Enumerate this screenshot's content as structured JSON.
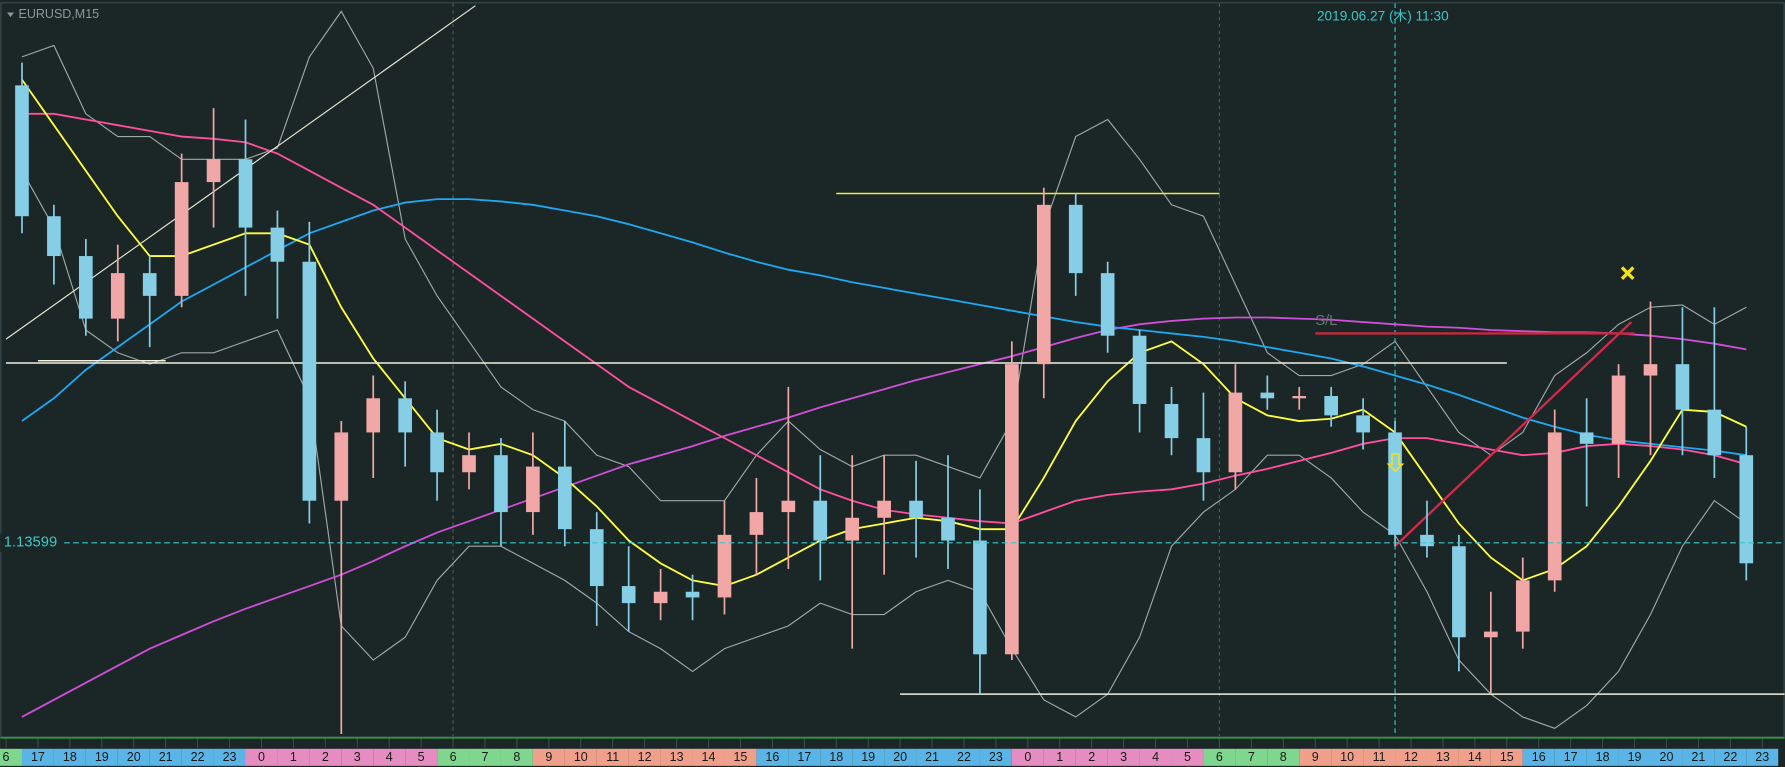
{
  "chart_data": {
    "type": "candlestick",
    "title": "EURUSD,M15",
    "cursor_time": "2019.06.27 (木) 11:30",
    "cursor_index": 43.5,
    "separators": [
      14,
      38
    ],
    "categories": [
      "6",
      "17",
      "18",
      "19",
      "20",
      "21",
      "22",
      "23",
      "0",
      "1",
      "2",
      "3",
      "4",
      "5",
      "6",
      "7",
      "8",
      "9",
      "10",
      "11",
      "12",
      "13",
      "14",
      "15",
      "16",
      "17",
      "18",
      "19",
      "20",
      "21",
      "22",
      "23",
      "0",
      "1",
      "2",
      "3",
      "4",
      "5",
      "6",
      "7",
      "8",
      "9",
      "10",
      "11",
      "12",
      "13",
      "14",
      "15",
      "16",
      "17",
      "18",
      "19",
      "20",
      "21",
      "22",
      "23"
    ],
    "category_colors": [
      "#7fd68f",
      "#5ab4e6",
      "#5ab4e6",
      "#5ab4e6",
      "#5ab4e6",
      "#5ab4e6",
      "#5ab4e6",
      "#5ab4e6",
      "#e58cc0",
      "#e58cc0",
      "#e58cc0",
      "#e58cc0",
      "#e58cc0",
      "#e58cc0",
      "#7fd68f",
      "#7fd68f",
      "#7fd68f",
      "#f0a08a",
      "#f0a08a",
      "#f0a08a",
      "#f0a08a",
      "#f0a08a",
      "#f0a08a",
      "#f0a08a",
      "#5ab4e6",
      "#5ab4e6",
      "#5ab4e6",
      "#5ab4e6",
      "#5ab4e6",
      "#5ab4e6",
      "#5ab4e6",
      "#5ab4e6",
      "#e58cc0",
      "#e58cc0",
      "#e58cc0",
      "#e58cc0",
      "#e58cc0",
      "#e58cc0",
      "#7fd68f",
      "#7fd68f",
      "#7fd68f",
      "#f0a08a",
      "#f0a08a",
      "#f0a08a",
      "#f0a08a",
      "#f0a08a",
      "#f0a08a",
      "#f0a08a",
      "#5ab4e6",
      "#5ab4e6",
      "#5ab4e6",
      "#5ab4e6",
      "#5ab4e6",
      "#5ab4e6",
      "#5ab4e6",
      "#5ab4e6"
    ],
    "open": [
      1.14001,
      1.13886,
      1.13851,
      1.13796,
      1.13836,
      1.13816,
      1.13916,
      1.13936,
      1.13876,
      1.13846,
      1.13636,
      1.13696,
      1.13726,
      1.13696,
      1.13661,
      1.13676,
      1.13626,
      1.13666,
      1.13611,
      1.13561,
      1.13546,
      1.13556,
      1.13551,
      1.13606,
      1.13626,
      1.13636,
      1.13601,
      1.13621,
      1.13636,
      1.13621,
      1.13601,
      1.13501,
      1.13756,
      1.13896,
      1.13836,
      1.13781,
      1.13721,
      1.13691,
      1.13661,
      1.13731,
      1.13726,
      1.13728,
      1.13711,
      1.13696,
      1.13606,
      1.13596,
      1.13516,
      1.13521,
      1.13566,
      1.13696,
      1.13686,
      1.13746,
      1.13756,
      1.13716,
      1.13676,
      null
    ],
    "high": [
      1.14021,
      1.13896,
      1.13866,
      1.13861,
      1.13851,
      1.13941,
      1.13981,
      1.13971,
      1.13891,
      1.13881,
      1.13706,
      1.13746,
      1.13741,
      1.13716,
      1.13696,
      1.13691,
      1.13696,
      1.13706,
      1.13626,
      1.13596,
      1.13576,
      1.13571,
      1.13636,
      1.13656,
      1.13736,
      1.13676,
      1.13676,
      1.13676,
      1.13671,
      1.13676,
      1.13646,
      1.13776,
      1.13911,
      1.13906,
      1.13846,
      1.13786,
      1.13736,
      1.13731,
      1.13756,
      1.13746,
      1.13736,
      1.13736,
      1.13726,
      1.13706,
      1.13636,
      1.13606,
      1.13556,
      1.13586,
      1.13716,
      1.13726,
      1.13756,
      1.13811,
      1.13806,
      1.13806,
      1.13701,
      null
    ],
    "low": [
      1.13871,
      1.13826,
      1.13781,
      1.13776,
      1.13771,
      1.13806,
      1.13876,
      1.13816,
      1.13796,
      1.13616,
      1.13431,
      1.13656,
      1.13666,
      1.13636,
      1.13646,
      1.13596,
      1.13606,
      1.13596,
      1.13526,
      1.13521,
      1.13531,
      1.13531,
      1.13536,
      1.13571,
      1.13576,
      1.13566,
      1.13506,
      1.13571,
      1.13586,
      1.13576,
      1.13466,
      1.13496,
      1.13726,
      1.13816,
      1.13766,
      1.13696,
      1.13676,
      1.13636,
      1.13646,
      1.13716,
      1.13716,
      1.13701,
      1.13681,
      1.13596,
      1.13586,
      1.13486,
      1.13466,
      1.13506,
      1.13556,
      1.13631,
      1.13656,
      1.13676,
      1.13676,
      1.13656,
      1.13566,
      null
    ],
    "close": [
      1.13886,
      1.13851,
      1.13796,
      1.13836,
      1.13816,
      1.13916,
      1.13936,
      1.13876,
      1.13846,
      1.13636,
      1.13696,
      1.13726,
      1.13696,
      1.13661,
      1.13676,
      1.13626,
      1.13666,
      1.13611,
      1.13561,
      1.13546,
      1.13556,
      1.13551,
      1.13606,
      1.13626,
      1.13636,
      1.13601,
      1.13621,
      1.13636,
      1.13621,
      1.13601,
      1.13501,
      1.13756,
      1.13896,
      1.13836,
      1.13781,
      1.13721,
      1.13691,
      1.13661,
      1.13731,
      1.13726,
      1.13728,
      1.13711,
      1.13696,
      1.13606,
      1.13596,
      1.13516,
      1.13521,
      1.13566,
      1.13696,
      1.13686,
      1.13746,
      1.13756,
      1.13716,
      1.13676,
      1.13581,
      null
    ],
    "up_color": "#f2a7a7",
    "down_color": "#86cde6",
    "ylim": [
      1.1343,
      1.14076
    ],
    "current_price": 1.13599,
    "current_price_color": "#3cc8c8",
    "series": [
      {
        "color": "#a0a8a8",
        "values": [
          1.14026,
          1.14036,
          1.13976,
          1.13956,
          1.13956,
          1.13936,
          1.13936,
          1.13936,
          1.13946,
          1.14026,
          1.14066,
          1.14016,
          1.13866,
          1.13816,
          1.13776,
          1.13736,
          1.13716,
          1.13706,
          1.13676,
          1.13666,
          1.13636,
          1.13636,
          1.13636,
          1.13676,
          1.13706,
          1.13681,
          1.13666,
          1.13676,
          1.13676,
          1.13666,
          1.13656,
          1.13706,
          1.13876,
          1.13956,
          1.13971,
          1.13936,
          1.13896,
          1.13886,
          1.13826,
          1.13766,
          1.13746,
          1.13746,
          1.13756,
          1.13776,
          1.13736,
          1.13696,
          1.13676,
          1.13696,
          1.13746,
          1.13766,
          1.13791,
          1.13806,
          1.13808,
          1.13791,
          1.13806,
          null
        ]
      },
      {
        "color": "#a0a8a8",
        "values": [
          1.13926,
          1.13876,
          1.13786,
          1.13766,
          1.13756,
          1.13766,
          1.13766,
          1.13776,
          1.13786,
          1.13726,
          1.13526,
          1.13496,
          1.13516,
          1.13566,
          1.13596,
          1.13596,
          1.13581,
          1.13566,
          1.13546,
          1.13521,
          1.13506,
          1.13486,
          1.13506,
          1.13516,
          1.13526,
          1.13546,
          1.13536,
          1.13536,
          1.13556,
          1.13566,
          1.13556,
          1.13506,
          1.13461,
          1.13446,
          1.13466,
          1.13516,
          1.13596,
          1.13626,
          1.13646,
          1.13676,
          1.13676,
          1.13656,
          1.13626,
          1.13606,
          1.13556,
          1.13496,
          1.13466,
          1.13446,
          1.13436,
          1.13456,
          1.13486,
          1.13536,
          1.13596,
          1.13636,
          1.13616,
          null
        ]
      },
      {
        "color": "#d04fd8",
        "values": [
          1.13446,
          1.13461,
          1.13476,
          1.13491,
          1.13506,
          1.13518,
          1.1353,
          1.13541,
          1.13551,
          1.13561,
          1.13571,
          1.13583,
          1.13596,
          1.13608,
          1.13618,
          1.13628,
          1.13638,
          1.13648,
          1.13658,
          1.13668,
          1.13676,
          1.13684,
          1.13693,
          1.13701,
          1.13709,
          1.13718,
          1.13726,
          1.13734,
          1.13742,
          1.13749,
          1.13756,
          1.13763,
          1.13771,
          1.13779,
          1.13786,
          1.13791,
          1.13794,
          1.13796,
          1.13797,
          1.13797,
          1.13796,
          1.13795,
          1.13793,
          1.13791,
          1.13789,
          1.13788,
          1.13786,
          1.13785,
          1.13784,
          1.13784,
          1.13783,
          1.13781,
          1.13778,
          1.13774,
          1.13769,
          null
        ]
      },
      {
        "color": "#1ea8f0",
        "values": [
          1.13706,
          1.13726,
          1.13751,
          1.13771,
          1.13791,
          1.13811,
          1.13826,
          1.13841,
          1.13856,
          1.13871,
          1.13881,
          1.13891,
          1.13898,
          1.13901,
          1.13901,
          1.13899,
          1.13896,
          1.13891,
          1.13886,
          1.13879,
          1.13871,
          1.13863,
          1.13854,
          1.13846,
          1.13839,
          1.13834,
          1.13828,
          1.13823,
          1.13818,
          1.13813,
          1.13808,
          1.13803,
          1.13798,
          1.13793,
          1.13789,
          1.13786,
          1.13783,
          1.1378,
          1.13776,
          1.13771,
          1.13766,
          1.13761,
          1.13754,
          1.13746,
          1.13738,
          1.13729,
          1.13719,
          1.13709,
          1.13701,
          1.13694,
          1.13689,
          1.13686,
          1.13683,
          1.1368,
          1.13676,
          null
        ]
      },
      {
        "color": "#ff4f9e",
        "values": [
          1.13976,
          1.13976,
          1.13971,
          1.13966,
          1.13961,
          1.13956,
          1.13954,
          1.13951,
          1.13941,
          1.13926,
          1.13911,
          1.13896,
          1.13876,
          1.13856,
          1.13836,
          1.13816,
          1.13796,
          1.13776,
          1.13756,
          1.13736,
          1.13721,
          1.13706,
          1.13691,
          1.13676,
          1.13661,
          1.13646,
          1.13636,
          1.13628,
          1.13624,
          1.13621,
          1.13618,
          1.13616,
          1.13626,
          1.13636,
          1.13641,
          1.13644,
          1.13646,
          1.13651,
          1.13658,
          1.13664,
          1.13671,
          1.13678,
          1.13686,
          1.13691,
          1.13691,
          1.13686,
          1.13681,
          1.13676,
          1.13678,
          1.13684,
          1.13686,
          1.13684,
          1.13681,
          1.13676,
          1.13668,
          null
        ]
      },
      {
        "color": "#ffff40",
        "values": [
          1.14006,
          1.13966,
          1.13926,
          1.13886,
          1.13851,
          1.13851,
          1.13861,
          1.13871,
          1.13871,
          1.13861,
          1.13806,
          1.13761,
          1.13726,
          1.13691,
          1.13681,
          1.13686,
          1.13676,
          1.13656,
          1.13631,
          1.13601,
          1.13581,
          1.13566,
          1.13561,
          1.13571,
          1.13586,
          1.13601,
          1.13611,
          1.13616,
          1.13621,
          1.13618,
          1.13611,
          1.13611,
          1.13656,
          1.13706,
          1.13741,
          1.13766,
          1.13776,
          1.13756,
          1.13726,
          1.13711,
          1.13706,
          1.13708,
          1.13716,
          1.13696,
          1.13656,
          1.13616,
          1.13586,
          1.13566,
          1.13576,
          1.13596,
          1.13631,
          1.13671,
          1.13716,
          1.13714,
          1.13701,
          null
        ]
      }
    ],
    "levels": [
      {
        "value": 1.13906,
        "x": [
          26,
          38
        ],
        "color": "#e8e850"
      },
      {
        "value": 1.13757,
        "x": [
          0,
          47
        ],
        "color": "#f0f0e0"
      },
      {
        "value": 1.13759,
        "x": [
          1,
          5
        ],
        "color": "#f0f0e0"
      },
      {
        "value": 1.13466,
        "x": [
          28,
          55.7
        ],
        "color": "#f0f0e0"
      }
    ],
    "trendlines": [
      {
        "x": [
          0,
          14.7
        ],
        "y": [
          1.13778,
          1.14071
        ],
        "color": "#e8e8d8"
      },
      {
        "x": [
          43.5,
          50.9
        ],
        "y": [
          1.13596,
          1.13793
        ],
        "color": "#d8284a"
      }
    ],
    "stop_loss": {
      "label": "S/L",
      "value": 1.13783,
      "x": [
        41,
        51
      ],
      "color": "#c8283c"
    }
  }
}
